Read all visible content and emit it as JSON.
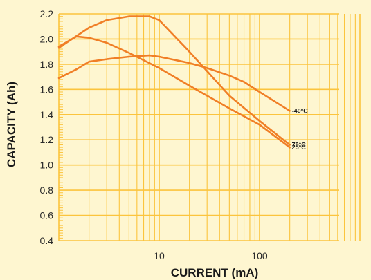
{
  "chart_data": {
    "type": "line",
    "xlabel": "CURRENT (mA)",
    "ylabel": "CAPACITY (Ah)",
    "x_scale": "log",
    "xlim": [
      1,
      1000
    ],
    "ylim": [
      0.4,
      2.2
    ],
    "x_tick_labels": [
      "10",
      "100"
    ],
    "y_tick_labels": [
      "0.4",
      "0.6",
      "0.8",
      "1.0",
      "1.2",
      "1.4",
      "1.6",
      "1.8",
      "2.0",
      "2.2"
    ],
    "grid": true,
    "series": [
      {
        "name": "70°C",
        "x": [
          1,
          2,
          3,
          5,
          8,
          10,
          20,
          50,
          100,
          200
        ],
        "y": [
          1.93,
          2.09,
          2.15,
          2.18,
          2.18,
          2.15,
          1.9,
          1.55,
          1.35,
          1.16
        ]
      },
      {
        "name": "25°C",
        "x": [
          1,
          1.5,
          2,
          3,
          5,
          10,
          20,
          50,
          100,
          200
        ],
        "y": [
          1.94,
          2.02,
          2.01,
          1.97,
          1.89,
          1.77,
          1.63,
          1.45,
          1.32,
          1.14
        ]
      },
      {
        "name": "-40°C",
        "x": [
          1,
          1.5,
          2,
          3,
          5,
          8,
          10,
          20,
          30,
          50,
          70,
          100,
          200
        ],
        "y": [
          1.69,
          1.76,
          1.82,
          1.84,
          1.86,
          1.87,
          1.86,
          1.81,
          1.77,
          1.71,
          1.66,
          1.58,
          1.43
        ]
      }
    ],
    "end_labels": [
      "70°C",
      "25°C",
      "-40°C"
    ],
    "colors": {
      "background": "#fef6d0",
      "grid": "#fbc43d",
      "line": "#f07e26",
      "text": "#1a1a1a"
    }
  }
}
